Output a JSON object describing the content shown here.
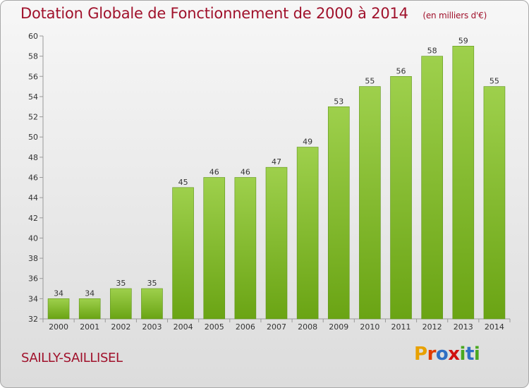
{
  "header": {
    "title": "Dotation Globale de Fonctionnement de 2000 à 2014",
    "unit": "(en milliers d'€)"
  },
  "footer": {
    "commune": "SAILLY-SAILLISEL",
    "logo_letters": [
      "P",
      "r",
      "o",
      "x",
      "i",
      "t",
      "i"
    ],
    "logo_colors": [
      "#e8a100",
      "#e03b00",
      "#2f6fc4",
      "#d01010",
      "#4aa820",
      "#2f6fc4",
      "#4aa820"
    ]
  },
  "colors": {
    "bar_light": "#9ed04c",
    "bar_dark": "#6aa414",
    "text": "#333333",
    "accent": "#a0112b"
  },
  "chart_data": {
    "type": "bar",
    "title": "Dotation Globale de Fonctionnement de 2000 à 2014",
    "subtitle": "(en milliers d'€)",
    "xlabel": "",
    "ylabel": "",
    "categories": [
      "2000",
      "2001",
      "2002",
      "2003",
      "2004",
      "2005",
      "2006",
      "2007",
      "2008",
      "2009",
      "2010",
      "2011",
      "2012",
      "2013",
      "2014"
    ],
    "values": [
      34,
      34,
      35,
      35,
      45,
      46,
      46,
      47,
      49,
      53,
      55,
      56,
      58,
      59,
      55
    ],
    "ylim": [
      32,
      60
    ],
    "yticks": [
      32,
      34,
      36,
      38,
      40,
      42,
      44,
      46,
      48,
      50,
      52,
      54,
      56,
      58,
      60
    ],
    "grid": false,
    "legend": "none"
  }
}
